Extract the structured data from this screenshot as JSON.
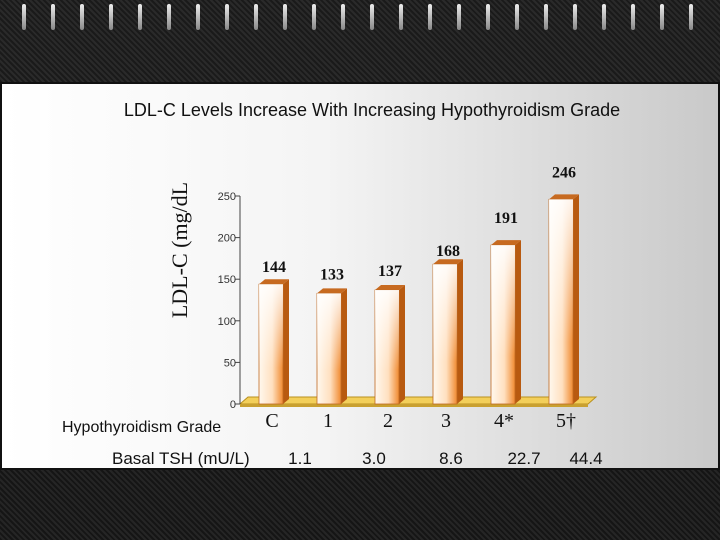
{
  "chart_data": {
    "type": "bar",
    "title": "LDL-C Levels Increase With Increasing Hypothyroidism Grade",
    "ylabel": "LDL-C (mg/dL",
    "xlabel": "Hypothyroidism Grade",
    "categories": [
      "C",
      "1",
      "2",
      "3",
      "4*",
      "5†"
    ],
    "values": [
      144,
      133,
      137,
      168,
      191,
      246
    ],
    "value_labels": [
      "144",
      "133",
      "137",
      "168",
      "191",
      "246"
    ],
    "ylim": [
      0,
      250
    ],
    "yticks": [
      0,
      50,
      100,
      150,
      200,
      250
    ],
    "grid": false,
    "legend": "none",
    "secondary_row": {
      "label": "Basal TSH (mU/L)",
      "values": [
        "1.1",
        "3.0",
        "8.6",
        "22.7",
        "44.4"
      ]
    },
    "colors": {
      "bar_light": "#fff5e8",
      "bar_dark": "#f07818",
      "floor": "#f2c850"
    }
  }
}
